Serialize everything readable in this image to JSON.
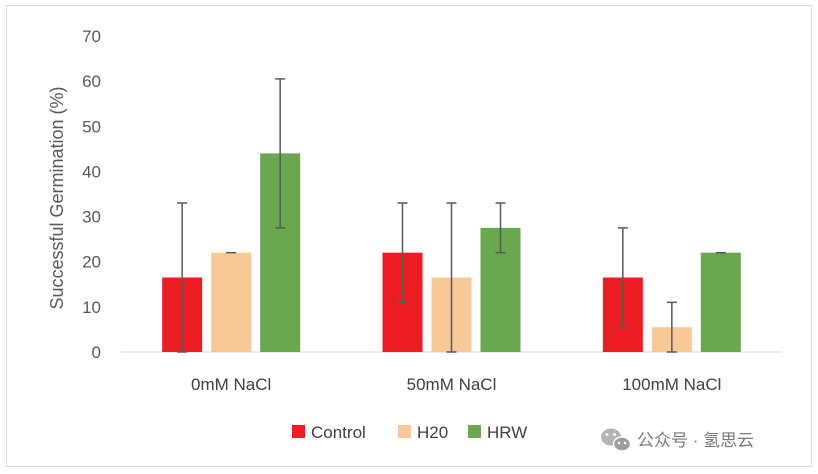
{
  "chart_data": {
    "type": "bar",
    "title": "",
    "xlabel": "",
    "ylabel": "Successful Germination (%)",
    "ylim": [
      0,
      70
    ],
    "yticks": [
      0,
      10,
      20,
      30,
      40,
      50,
      60,
      70
    ],
    "grid": false,
    "legend_position": "bottom",
    "categories": [
      "0mM NaCl",
      "50mM NaCl",
      "100mM NaCl"
    ],
    "series": [
      {
        "name": "Control",
        "color": "#ee1c25",
        "values": [
          16.5,
          22,
          16.5
        ],
        "errors": [
          16.5,
          11,
          11
        ]
      },
      {
        "name": "H20",
        "color": "#f9c897",
        "values": [
          22,
          16.5,
          5.5
        ],
        "errors": [
          0,
          16.5,
          5.5
        ]
      },
      {
        "name": "HRW",
        "color": "#6aa84f",
        "values": [
          44,
          27.5,
          22
        ],
        "errors": [
          16.5,
          5.5,
          0
        ]
      }
    ]
  },
  "watermark": {
    "text": "公众号 · 氢思云",
    "icon": "wechat-icon"
  }
}
